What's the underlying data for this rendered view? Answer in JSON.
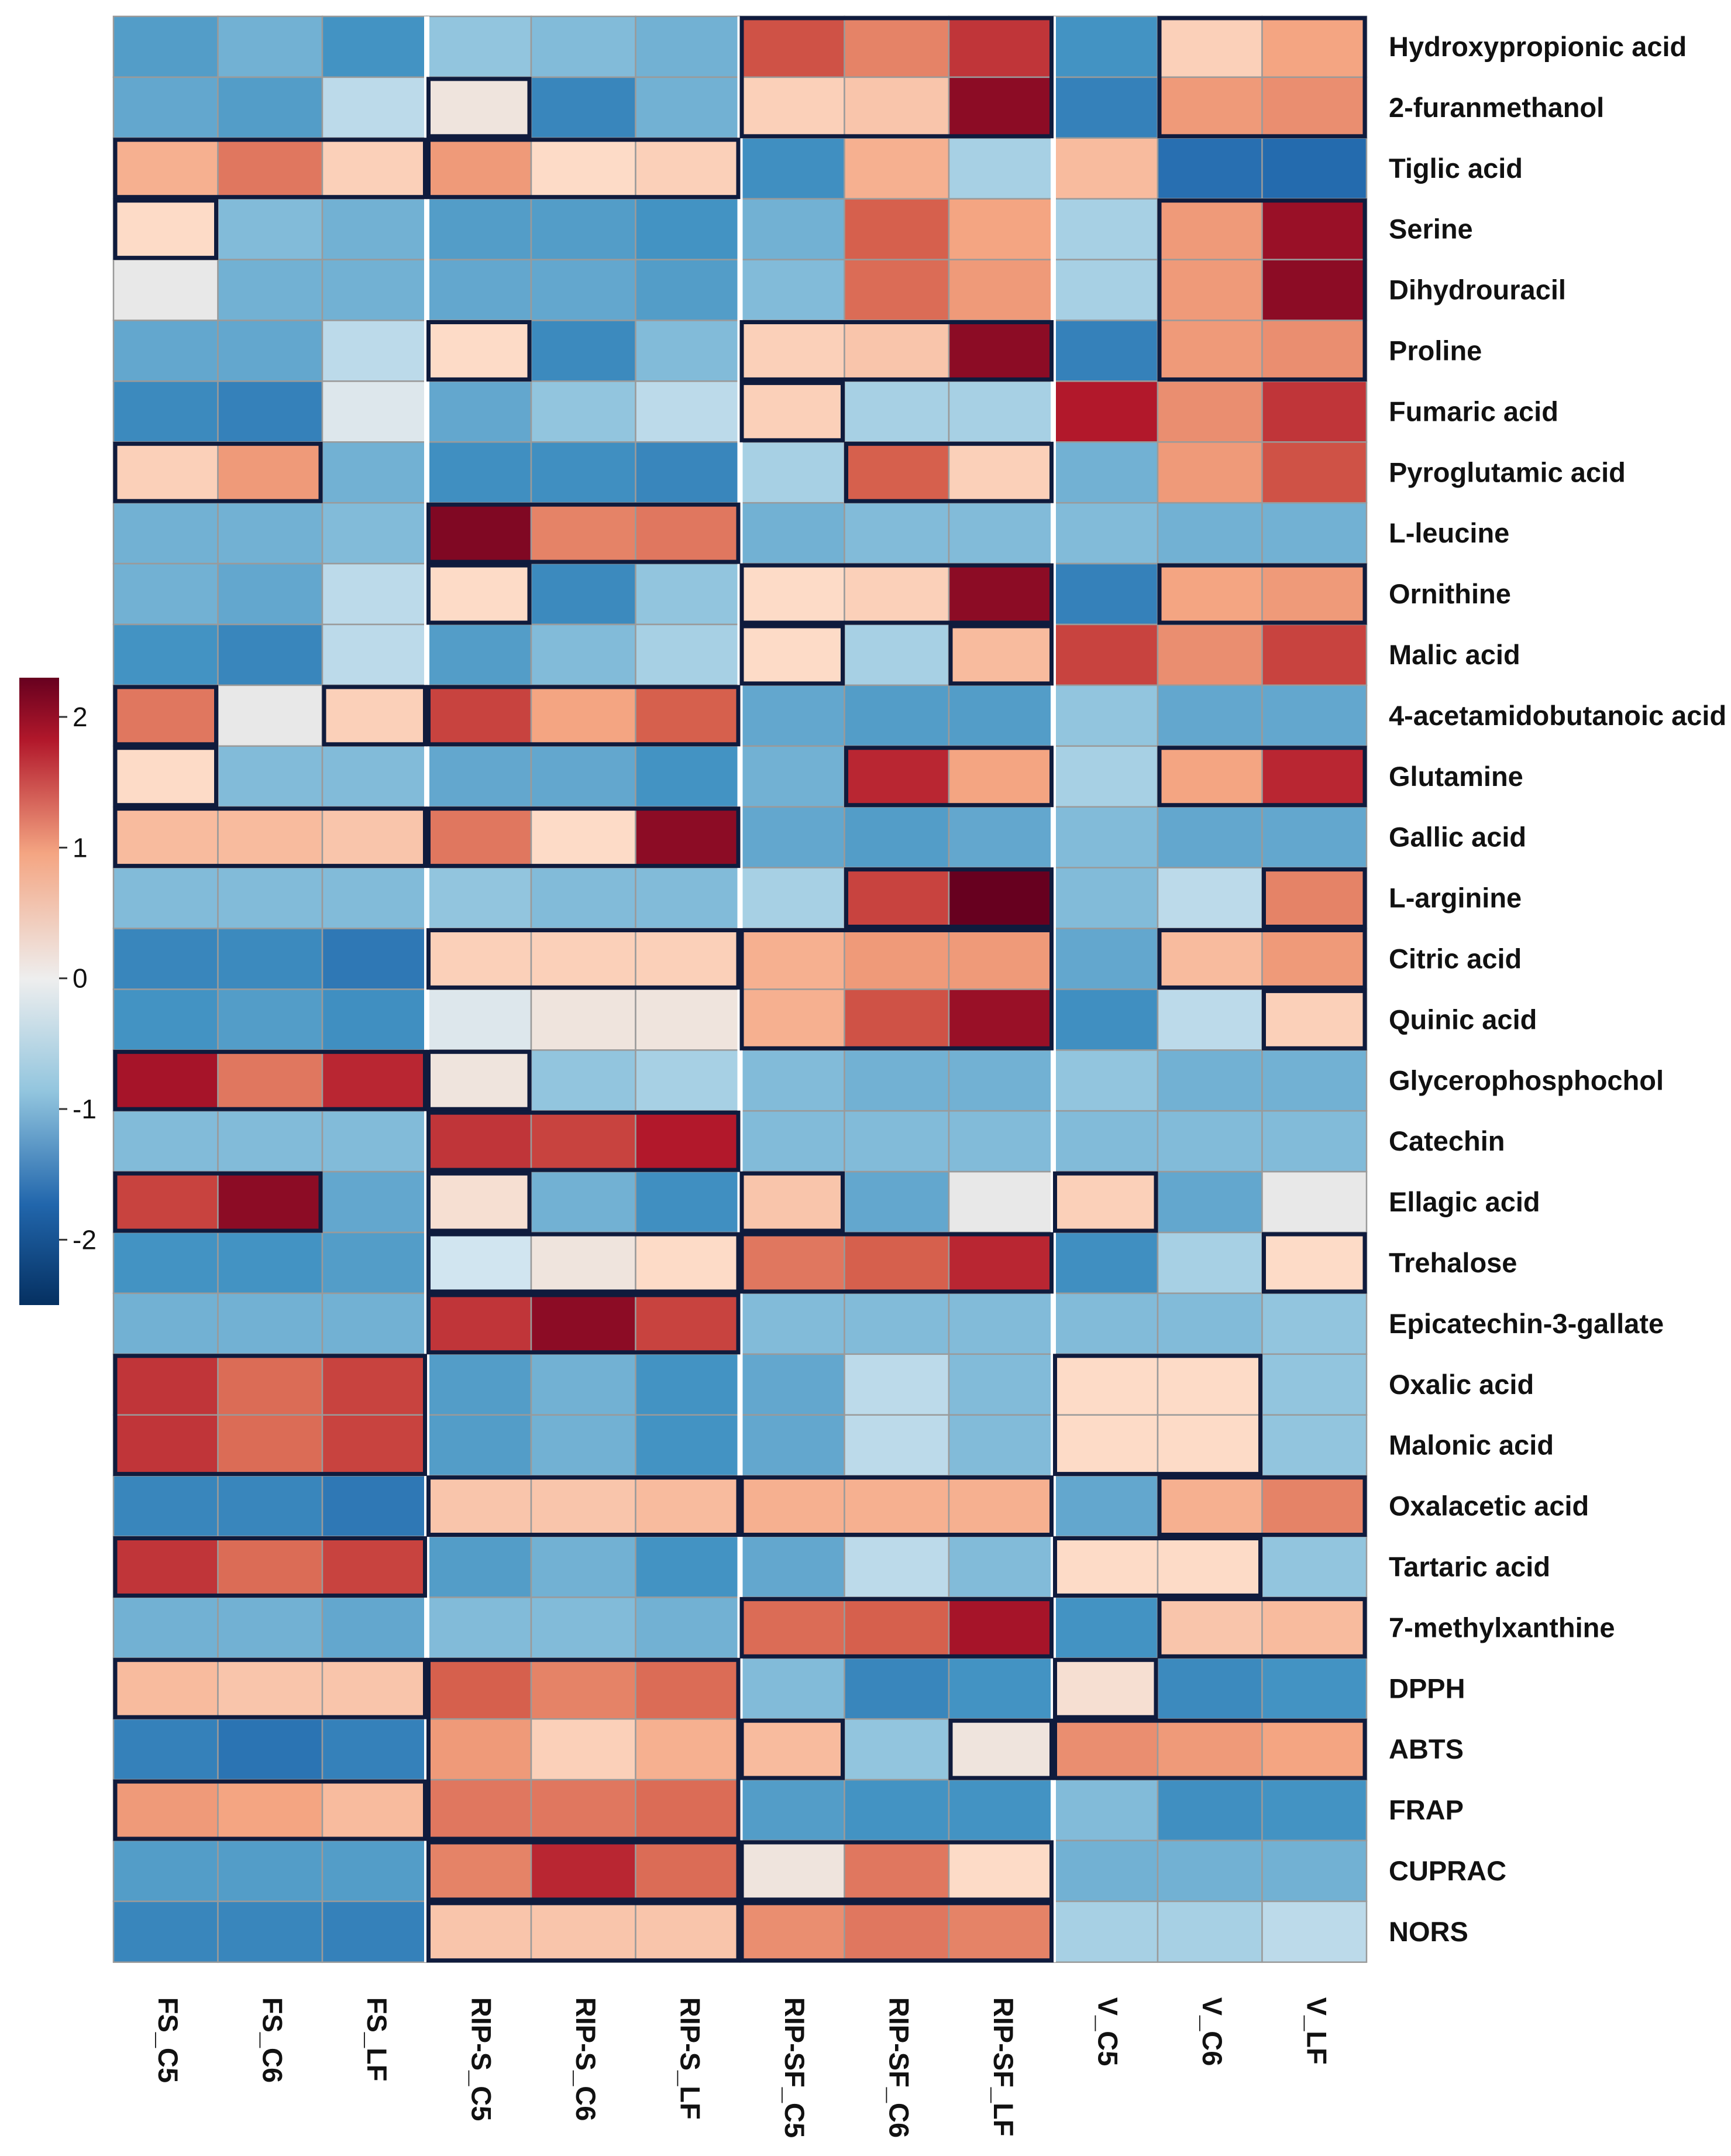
{
  "chart_data": {
    "type": "heatmap",
    "colorbar": {
      "ticks": [
        2,
        1,
        0,
        -1,
        -2
      ],
      "tick_labels": [
        "2",
        "1",
        "0",
        "-1",
        "-2"
      ],
      "range": [
        -2.5,
        2.3
      ],
      "colors": {
        "low": "#053061",
        "mid_low": "#4393c3",
        "neutral": "#e8e8e8",
        "mid_high": "#f4a582",
        "high": "#67001f"
      }
    },
    "columns": [
      "FS_C5",
      "FS_C6",
      "FS_LF",
      "RIP-S_C5",
      "RIP-S_C6",
      "RIP-S_LF",
      "RIP-SF_C5",
      "RIP-SF_C6",
      "RIP-SF_LF",
      "V_C5",
      "V_C6",
      "V_LF"
    ],
    "rows": [
      "Hydroxypropionic acid",
      "2-furanmethanol",
      "Tiglic acid",
      "Serine",
      "Dihydrouracil",
      "Proline",
      "Fumaric acid",
      "Pyroglutamic acid",
      "L-leucine",
      "Ornithine",
      "Malic acid",
      "4-acetamidobutanoic acid",
      "Glutamine",
      "Gallic acid",
      "L-arginine",
      "Citric acid",
      "Quinic acid",
      "Glycerophosphochol",
      "Catechin",
      "Ellagic acid",
      "Trehalose",
      "Epicatechin-3-gallate",
      "Oxalic acid",
      "Malonic acid",
      "Oxalacetic acid",
      "Tartaric acid",
      "7-methylxanthine",
      "DPPH",
      "ABTS",
      "FRAP",
      "CUPRAC",
      "NORS"
    ],
    "values": [
      [
        -0.9,
        -0.7,
        -1.0,
        -0.5,
        -0.6,
        -0.7,
        1.5,
        1.1,
        1.7,
        -1.0,
        0.4,
        0.8
      ],
      [
        -0.8,
        -0.9,
        -0.3,
        0.1,
        -1.3,
        -0.7,
        0.4,
        0.5,
        2.2,
        -1.4,
        0.9,
        1.0
      ],
      [
        0.7,
        1.2,
        0.4,
        0.9,
        0.3,
        0.4,
        -1.1,
        0.7,
        -0.4,
        0.6,
        -1.8,
        -1.9
      ],
      [
        0.3,
        -0.6,
        -0.7,
        -0.9,
        -0.9,
        -1.0,
        -0.7,
        1.4,
        0.8,
        -0.4,
        0.9,
        2.1
      ],
      [
        0.0,
        -0.7,
        -0.7,
        -0.8,
        -0.8,
        -0.9,
        -0.6,
        1.3,
        0.9,
        -0.4,
        0.9,
        2.2
      ],
      [
        -0.8,
        -0.8,
        -0.3,
        0.3,
        -1.2,
        -0.6,
        0.4,
        0.5,
        2.2,
        -1.4,
        0.9,
        1.0
      ],
      [
        -1.2,
        -1.4,
        -0.1,
        -0.8,
        -0.5,
        -0.3,
        0.4,
        -0.4,
        -0.4,
        1.9,
        1.0,
        1.7
      ],
      [
        0.4,
        0.9,
        -0.7,
        -1.1,
        -1.1,
        -1.3,
        -0.4,
        1.4,
        0.4,
        -0.7,
        0.9,
        1.5
      ],
      [
        -0.7,
        -0.7,
        -0.6,
        2.3,
        1.1,
        1.2,
        -0.7,
        -0.6,
        -0.6,
        -0.6,
        -0.7,
        -0.7
      ],
      [
        -0.7,
        -0.8,
        -0.3,
        0.3,
        -1.2,
        -0.5,
        0.3,
        0.4,
        2.2,
        -1.4,
        0.8,
        0.9
      ],
      [
        -1.0,
        -1.3,
        -0.3,
        -0.9,
        -0.6,
        -0.4,
        0.3,
        -0.4,
        0.6,
        1.6,
        1.0,
        1.6
      ],
      [
        1.2,
        0.0,
        0.4,
        1.6,
        0.8,
        1.4,
        -0.8,
        -0.9,
        -0.9,
        -0.5,
        -0.8,
        -0.8
      ],
      [
        0.3,
        -0.6,
        -0.6,
        -0.8,
        -0.8,
        -1.0,
        -0.7,
        1.8,
        0.8,
        -0.4,
        0.8,
        1.8
      ],
      [
        0.6,
        0.6,
        0.5,
        1.2,
        0.3,
        2.2,
        -0.8,
        -0.9,
        -0.8,
        -0.6,
        -0.8,
        -0.8
      ],
      [
        -0.6,
        -0.6,
        -0.6,
        -0.5,
        -0.6,
        -0.6,
        -0.4,
        1.6,
        2.5,
        -0.6,
        -0.3,
        1.1
      ],
      [
        -1.3,
        -1.2,
        -1.6,
        0.4,
        0.4,
        0.4,
        0.7,
        0.9,
        0.9,
        -0.8,
        0.6,
        0.9
      ],
      [
        -1.0,
        -0.9,
        -1.1,
        -0.1,
        0.1,
        0.1,
        0.7,
        1.5,
        2.1,
        -1.1,
        -0.3,
        0.4
      ],
      [
        2.0,
        1.2,
        1.8,
        0.1,
        -0.5,
        -0.4,
        -0.6,
        -0.7,
        -0.7,
        -0.5,
        -0.7,
        -0.7
      ],
      [
        -0.6,
        -0.6,
        -0.6,
        1.7,
        1.6,
        1.9,
        -0.6,
        -0.6,
        -0.6,
        -0.6,
        -0.6,
        -0.6
      ],
      [
        1.6,
        2.2,
        -0.8,
        0.2,
        -0.7,
        -1.1,
        0.5,
        -0.8,
        0.0,
        0.4,
        -0.8,
        0.0
      ],
      [
        -1.0,
        -1.0,
        -0.9,
        -0.2,
        0.1,
        0.3,
        1.2,
        1.4,
        1.8,
        -1.1,
        -0.4,
        0.3
      ],
      [
        -0.7,
        -0.7,
        -0.7,
        1.7,
        2.2,
        1.6,
        -0.6,
        -0.6,
        -0.6,
        -0.6,
        -0.6,
        -0.5
      ],
      [
        1.7,
        1.3,
        1.6,
        -0.9,
        -0.7,
        -1.0,
        -0.8,
        -0.3,
        -0.6,
        0.3,
        0.3,
        -0.5
      ],
      [
        1.7,
        1.3,
        1.6,
        -0.9,
        -0.7,
        -1.0,
        -0.8,
        -0.3,
        -0.6,
        0.3,
        0.3,
        -0.5
      ],
      [
        -1.3,
        -1.3,
        -1.6,
        0.5,
        0.5,
        0.6,
        0.7,
        0.7,
        0.7,
        -0.8,
        0.7,
        1.1
      ],
      [
        1.7,
        1.3,
        1.6,
        -0.9,
        -0.7,
        -1.0,
        -0.8,
        -0.3,
        -0.6,
        0.3,
        0.3,
        -0.5
      ],
      [
        -0.7,
        -0.7,
        -0.8,
        -0.6,
        -0.6,
        -0.7,
        1.3,
        1.4,
        2.0,
        -1.0,
        0.5,
        0.6
      ],
      [
        0.6,
        0.5,
        0.5,
        1.4,
        1.1,
        1.3,
        -0.6,
        -1.3,
        -1.0,
        0.2,
        -1.2,
        -1.0
      ],
      [
        -1.4,
        -1.7,
        -1.4,
        0.9,
        0.4,
        0.7,
        0.6,
        -0.5,
        0.1,
        1.0,
        0.9,
        0.8
      ],
      [
        0.9,
        0.8,
        0.6,
        1.2,
        1.2,
        1.3,
        -0.9,
        -1.0,
        -1.0,
        -0.6,
        -1.1,
        -1.0
      ],
      [
        -0.9,
        -0.9,
        -0.9,
        1.1,
        1.8,
        1.3,
        0.1,
        1.2,
        0.3,
        -0.7,
        -0.7,
        -0.7
      ],
      [
        -1.3,
        -1.3,
        -1.4,
        0.5,
        0.5,
        0.5,
        1.0,
        1.2,
        1.1,
        -0.4,
        -0.4,
        -0.3
      ]
    ],
    "highlight_boxes": [
      {
        "row_start": 0,
        "row_end": 1,
        "col_start": 6,
        "col_end": 8
      },
      {
        "row_start": 0,
        "row_end": 1,
        "col_start": 10,
        "col_end": 11
      },
      {
        "row_start": 1,
        "row_end": 1,
        "col_start": 3,
        "col_end": 3
      },
      {
        "row_start": 2,
        "row_end": 2,
        "col_start": 0,
        "col_end": 2
      },
      {
        "row_start": 2,
        "row_end": 2,
        "col_start": 3,
        "col_end": 5
      },
      {
        "row_start": 3,
        "row_end": 3,
        "col_start": 0,
        "col_end": 0
      },
      {
        "row_start": 3,
        "row_end": 5,
        "col_start": 10,
        "col_end": 11
      },
      {
        "row_start": 5,
        "row_end": 5,
        "col_start": 3,
        "col_end": 3
      },
      {
        "row_start": 5,
        "row_end": 5,
        "col_start": 6,
        "col_end": 8
      },
      {
        "row_start": 6,
        "row_end": 6,
        "col_start": 6,
        "col_end": 6
      },
      {
        "row_start": 7,
        "row_end": 7,
        "col_start": 0,
        "col_end": 1
      },
      {
        "row_start": 7,
        "row_end": 7,
        "col_start": 7,
        "col_end": 8
      },
      {
        "row_start": 8,
        "row_end": 8,
        "col_start": 3,
        "col_end": 5
      },
      {
        "row_start": 9,
        "row_end": 9,
        "col_start": 3,
        "col_end": 3
      },
      {
        "row_start": 9,
        "row_end": 9,
        "col_start": 6,
        "col_end": 8
      },
      {
        "row_start": 9,
        "row_end": 9,
        "col_start": 10,
        "col_end": 11
      },
      {
        "row_start": 10,
        "row_end": 10,
        "col_start": 6,
        "col_end": 6
      },
      {
        "row_start": 10,
        "row_end": 10,
        "col_start": 8,
        "col_end": 8
      },
      {
        "row_start": 11,
        "row_end": 11,
        "col_start": 0,
        "col_end": 0
      },
      {
        "row_start": 11,
        "row_end": 11,
        "col_start": 2,
        "col_end": 2
      },
      {
        "row_start": 11,
        "row_end": 11,
        "col_start": 3,
        "col_end": 5
      },
      {
        "row_start": 12,
        "row_end": 12,
        "col_start": 0,
        "col_end": 0
      },
      {
        "row_start": 12,
        "row_end": 12,
        "col_start": 7,
        "col_end": 8
      },
      {
        "row_start": 12,
        "row_end": 12,
        "col_start": 10,
        "col_end": 11
      },
      {
        "row_start": 13,
        "row_end": 13,
        "col_start": 0,
        "col_end": 2
      },
      {
        "row_start": 13,
        "row_end": 13,
        "col_start": 3,
        "col_end": 5
      },
      {
        "row_start": 14,
        "row_end": 14,
        "col_start": 7,
        "col_end": 8
      },
      {
        "row_start": 14,
        "row_end": 14,
        "col_start": 11,
        "col_end": 11
      },
      {
        "row_start": 15,
        "row_end": 15,
        "col_start": 3,
        "col_end": 5
      },
      {
        "row_start": 15,
        "row_end": 16,
        "col_start": 6,
        "col_end": 8
      },
      {
        "row_start": 15,
        "row_end": 15,
        "col_start": 10,
        "col_end": 11
      },
      {
        "row_start": 16,
        "row_end": 16,
        "col_start": 11,
        "col_end": 11
      },
      {
        "row_start": 17,
        "row_end": 17,
        "col_start": 0,
        "col_end": 2
      },
      {
        "row_start": 17,
        "row_end": 17,
        "col_start": 3,
        "col_end": 3
      },
      {
        "row_start": 18,
        "row_end": 18,
        "col_start": 3,
        "col_end": 5
      },
      {
        "row_start": 19,
        "row_end": 19,
        "col_start": 0,
        "col_end": 1
      },
      {
        "row_start": 19,
        "row_end": 19,
        "col_start": 3,
        "col_end": 3
      },
      {
        "row_start": 19,
        "row_end": 19,
        "col_start": 6,
        "col_end": 6
      },
      {
        "row_start": 19,
        "row_end": 19,
        "col_start": 9,
        "col_end": 9
      },
      {
        "row_start": 20,
        "row_end": 20,
        "col_start": 3,
        "col_end": 5
      },
      {
        "row_start": 20,
        "row_end": 20,
        "col_start": 6,
        "col_end": 8
      },
      {
        "row_start": 20,
        "row_end": 20,
        "col_start": 11,
        "col_end": 11
      },
      {
        "row_start": 21,
        "row_end": 21,
        "col_start": 3,
        "col_end": 5
      },
      {
        "row_start": 22,
        "row_end": 23,
        "col_start": 0,
        "col_end": 2
      },
      {
        "row_start": 22,
        "row_end": 23,
        "col_start": 9,
        "col_end": 10
      },
      {
        "row_start": 24,
        "row_end": 24,
        "col_start": 3,
        "col_end": 5
      },
      {
        "row_start": 24,
        "row_end": 24,
        "col_start": 6,
        "col_end": 8
      },
      {
        "row_start": 24,
        "row_end": 24,
        "col_start": 10,
        "col_end": 11
      },
      {
        "row_start": 25,
        "row_end": 25,
        "col_start": 0,
        "col_end": 2
      },
      {
        "row_start": 25,
        "row_end": 25,
        "col_start": 9,
        "col_end": 10
      },
      {
        "row_start": 26,
        "row_end": 26,
        "col_start": 6,
        "col_end": 8
      },
      {
        "row_start": 26,
        "row_end": 26,
        "col_start": 10,
        "col_end": 11
      },
      {
        "row_start": 27,
        "row_end": 27,
        "col_start": 0,
        "col_end": 2
      },
      {
        "row_start": 27,
        "row_end": 29,
        "col_start": 3,
        "col_end": 5
      },
      {
        "row_start": 27,
        "row_end": 27,
        "col_start": 9,
        "col_end": 9
      },
      {
        "row_start": 28,
        "row_end": 28,
        "col_start": 6,
        "col_end": 6
      },
      {
        "row_start": 28,
        "row_end": 28,
        "col_start": 8,
        "col_end": 8
      },
      {
        "row_start": 28,
        "row_end": 28,
        "col_start": 9,
        "col_end": 11
      },
      {
        "row_start": 29,
        "row_end": 29,
        "col_start": 0,
        "col_end": 2
      },
      {
        "row_start": 30,
        "row_end": 30,
        "col_start": 3,
        "col_end": 5
      },
      {
        "row_start": 30,
        "row_end": 30,
        "col_start": 6,
        "col_end": 8
      },
      {
        "row_start": 31,
        "row_end": 31,
        "col_start": 3,
        "col_end": 5
      },
      {
        "row_start": 31,
        "row_end": 31,
        "col_start": 6,
        "col_end": 8
      }
    ]
  }
}
